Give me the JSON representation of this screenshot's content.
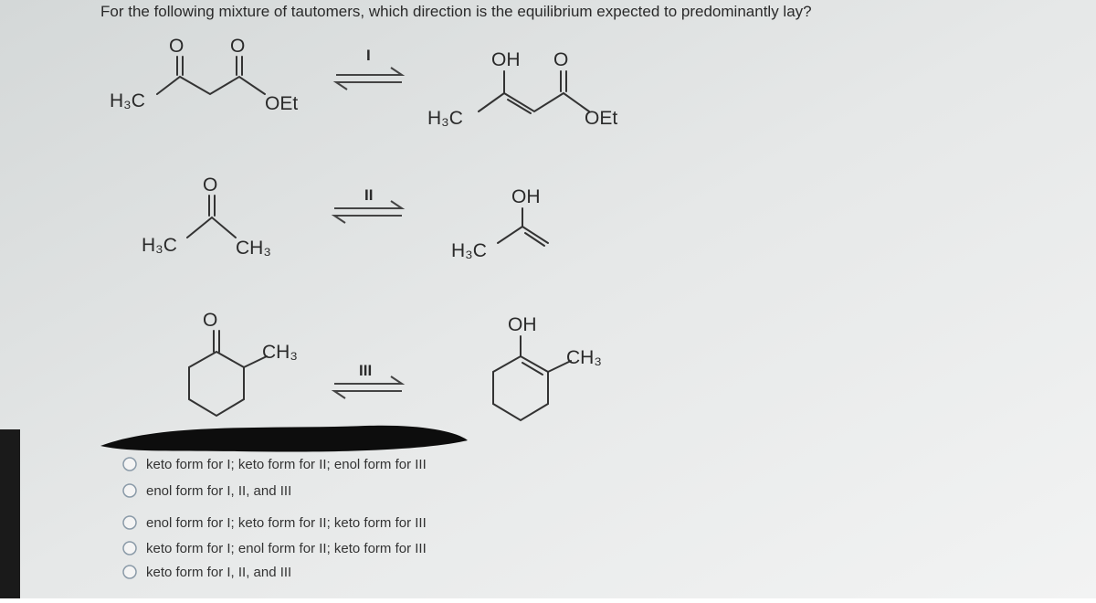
{
  "question": "For the following mixture of tautomers, which direction is the equilibrium expected to predominantly lay?",
  "reactions": [
    {
      "label": "I",
      "left": [
        "O",
        "O",
        "H₃C",
        "OEt"
      ],
      "right": [
        "OH",
        "O",
        "H₃C",
        "OEt"
      ]
    },
    {
      "label": "II",
      "left": [
        "O",
        "H₃C",
        "CH₃"
      ],
      "right": [
        "OH",
        "H₃C"
      ]
    },
    {
      "label": "III",
      "left": [
        "O",
        "CH₃"
      ],
      "right": [
        "OH",
        "CH₃"
      ]
    }
  ],
  "options": [
    "keto form for I; keto form for II; enol form for III",
    "enol form for I, II, and III",
    "enol form for I; keto form for II; keto form for III",
    "keto form for I; enol form for II; keto form for III",
    "keto form for I, II, and III"
  ]
}
